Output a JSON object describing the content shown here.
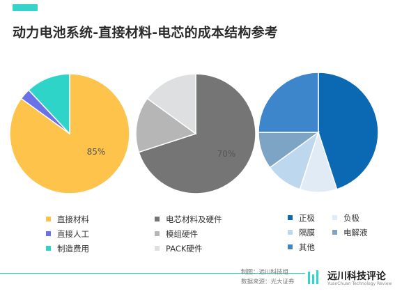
{
  "title": "动力电池系统-直接材料-电芯的成本结构参考",
  "colors": {
    "accent": "#35D3C9"
  },
  "chart_data": [
    {
      "type": "pie",
      "slices": [
        {
          "label": "直接材料",
          "value": 85,
          "color": "#FEC34B"
        },
        {
          "label": "直接人工",
          "value": 3,
          "color": "#6B72E8"
        },
        {
          "label": "制造费用",
          "value": 12,
          "color": "#2FD4C8"
        }
      ],
      "data_labels": [
        "85%"
      ]
    },
    {
      "type": "pie",
      "slices": [
        {
          "label": "电芯材料及硬件",
          "value": 70,
          "color": "#757575"
        },
        {
          "label": "模组硬件",
          "value": 15,
          "color": "#B6B6B6"
        },
        {
          "label": "PACK硬件",
          "value": 15,
          "color": "#DDDFE0"
        }
      ],
      "data_labels": [
        "70%"
      ]
    },
    {
      "type": "pie",
      "slices": [
        {
          "label": "正极",
          "value": 45,
          "color": "#0B68B3"
        },
        {
          "label": "负极",
          "value": 10,
          "color": "#E1EBF6"
        },
        {
          "label": "隔膜",
          "value": 10,
          "color": "#BDD7EE"
        },
        {
          "label": "电解液",
          "value": 10,
          "color": "#7EA4C5"
        },
        {
          "label": "其他",
          "value": 25,
          "color": "#3E86CB"
        }
      ],
      "data_labels": []
    }
  ],
  "footer": {
    "credit_line1": "制图：远川科技组",
    "credit_line2": "数据来源：光大证券",
    "logo_cn": "远川科技评论",
    "logo_en": "YuanChuan Technology Review"
  }
}
